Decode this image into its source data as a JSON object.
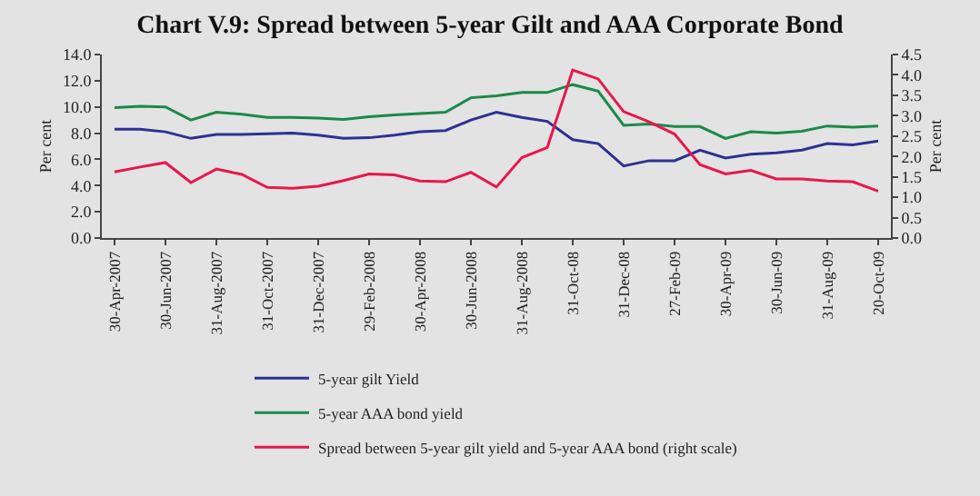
{
  "chart_data": {
    "type": "line",
    "title": "Chart V.9: Spread between 5-year Gilt and AAA Corporate Bond",
    "ylabel": "Per cent",
    "y2label": "Per cent",
    "categories": [
      "30-Apr-2007",
      null,
      "30-Jun-2007",
      null,
      "31-Aug-2007",
      null,
      "31-Oct-2007",
      null,
      "31-Dec-2007",
      null,
      "29-Feb-2008",
      null,
      "30-Apr-2008",
      null,
      "30-Jun-2008",
      null,
      "31-Aug-2008",
      null,
      "31-Oct-08",
      null,
      "31-Dec-08",
      null,
      "27-Feb-09",
      null,
      "30-Apr-09",
      null,
      "30-Jun-09",
      null,
      "31-Aug-09",
      null,
      "20-Oct-09"
    ],
    "series": [
      {
        "name": "5-year gilt Yield",
        "color": "#2e3192",
        "values": [
          8.3,
          8.3,
          8.1,
          7.6,
          7.9,
          7.9,
          7.95,
          8.0,
          7.85,
          7.6,
          7.65,
          7.85,
          8.1,
          8.2,
          9.0,
          9.6,
          9.2,
          8.9,
          7.5,
          7.2,
          5.5,
          5.9,
          5.9,
          6.7,
          6.1,
          6.4,
          6.5,
          6.7,
          7.2,
          7.1,
          7.4
        ]
      },
      {
        "name": "5-year AAA bond yield",
        "color": "#1a8a4a",
        "values": [
          9.95,
          10.05,
          10.0,
          9.0,
          9.6,
          9.45,
          9.2,
          9.2,
          9.15,
          9.05,
          9.25,
          9.4,
          9.5,
          9.6,
          10.7,
          10.85,
          11.1,
          11.1,
          11.7,
          11.2,
          8.6,
          8.7,
          8.5,
          8.5,
          7.6,
          8.1,
          8.0,
          8.15,
          8.55,
          8.45,
          8.55
        ]
      },
      {
        "name": "Spread between 5-year gilt yield and 5-year AAA bond (right scale)",
        "color": "#e8174b",
        "axis": "y2",
        "values": [
          1.62,
          1.74,
          1.85,
          1.36,
          1.69,
          1.56,
          1.24,
          1.22,
          1.27,
          1.41,
          1.57,
          1.55,
          1.4,
          1.38,
          1.61,
          1.25,
          1.97,
          2.22,
          4.12,
          3.9,
          3.1,
          2.85,
          2.55,
          1.8,
          1.57,
          1.66,
          1.45,
          1.45,
          1.4,
          1.38,
          1.15
        ]
      }
    ],
    "ylim": [
      0,
      14
    ],
    "yticks": [
      {
        "value": 0,
        "label": "0.0"
      },
      {
        "value": 2,
        "label": "2.0"
      },
      {
        "value": 4,
        "label": "4.0"
      },
      {
        "value": 6,
        "label": "6.0"
      },
      {
        "value": 8,
        "label": "8.0"
      },
      {
        "value": 10,
        "label": "10.0"
      },
      {
        "value": 12,
        "label": "12.0"
      },
      {
        "value": 14,
        "label": "14.0"
      }
    ],
    "y2lim": [
      0,
      4.5
    ],
    "y2ticks": [
      {
        "value": 0,
        "label": "0.0"
      },
      {
        "value": 0.5,
        "label": "0.5"
      },
      {
        "value": 1,
        "label": "1.0"
      },
      {
        "value": 1.5,
        "label": "1.5"
      },
      {
        "value": 2,
        "label": "2.0"
      },
      {
        "value": 2.5,
        "label": "2.5"
      },
      {
        "value": 3,
        "label": "3.0"
      },
      {
        "value": 3.5,
        "label": "3.5"
      },
      {
        "value": 4,
        "label": "4.0"
      },
      {
        "value": 4.5,
        "label": "4.5"
      }
    ],
    "legend": "bottom",
    "line_style": "solid"
  }
}
